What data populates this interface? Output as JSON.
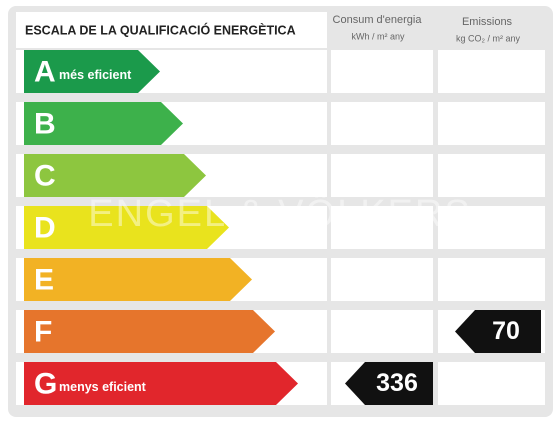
{
  "header": {
    "title": "ESCALA DE LA QUALIFICACIÓ ENERGÈTICA",
    "consumption_title": "Consum d'energia",
    "consumption_unit": "kWh / m² any",
    "emissions_title": "Emissions",
    "emissions_unit": "kg CO₂ / m² any"
  },
  "watermark": "ENGEL & VÖLKERS",
  "rows": [
    {
      "letter": "A",
      "label": "més eficient",
      "color": "#1b9a4b",
      "consumption": null,
      "emissions": null
    },
    {
      "letter": "B",
      "label": null,
      "color": "#3db14b",
      "consumption": null,
      "emissions": null
    },
    {
      "letter": "C",
      "label": null,
      "color": "#8dc63f",
      "consumption": null,
      "emissions": null
    },
    {
      "letter": "D",
      "label": null,
      "color": "#e9e31d",
      "consumption": null,
      "emissions": null
    },
    {
      "letter": "E",
      "label": null,
      "color": "#f2b224",
      "consumption": null,
      "emissions": null
    },
    {
      "letter": "F",
      "label": null,
      "color": "#e6752c",
      "consumption": null,
      "emissions": 70
    },
    {
      "letter": "G",
      "label": "menys eficient",
      "color": "#e1262c",
      "consumption": 336,
      "emissions": null
    }
  ]
}
